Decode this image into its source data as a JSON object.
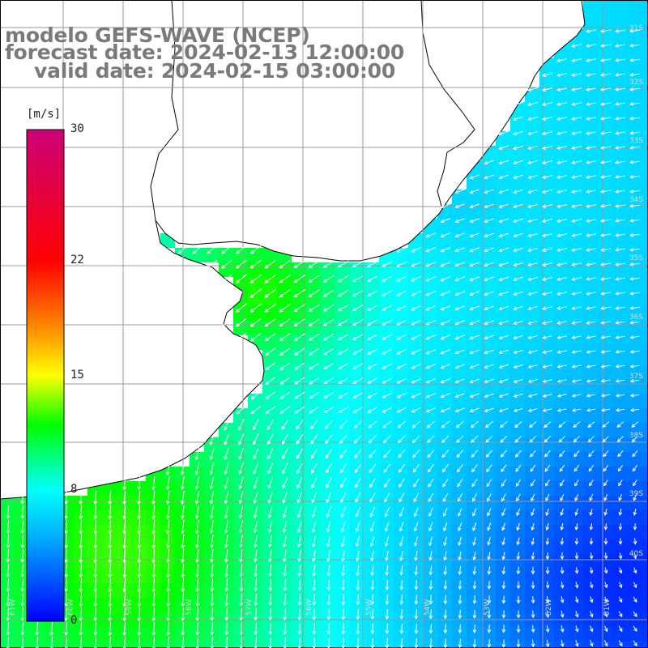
{
  "header": {
    "line1": "modelo GEFS-WAVE (NCEP)",
    "line2": "forecast date: 2024-02-13 12:00:00",
    "line3": "valid date: 2024-02-15 03:00:00"
  },
  "colorbar": {
    "unit": "[m/s]",
    "ticks": [
      {
        "value": 30,
        "label": "30"
      },
      {
        "value": 22,
        "label": "22"
      },
      {
        "value": 15,
        "label": "15"
      },
      {
        "value": 8,
        "label": "8"
      },
      {
        "value": 0,
        "label": "0"
      }
    ],
    "range": [
      0,
      30
    ],
    "colors": [
      "#0000ff",
      "#00aaff",
      "#00ffff",
      "#00ff00",
      "#ffff00",
      "#ff8800",
      "#ff0000",
      "#cc0077"
    ]
  },
  "map": {
    "field": "wind speed and direction (10 m)",
    "lon_labels": [
      "61W",
      "60W",
      "59W",
      "58W",
      "57W",
      "56W",
      "55W",
      "54W",
      "53W",
      "52W",
      "51W"
    ],
    "lat_labels": [
      "31S",
      "32S",
      "33S",
      "34S",
      "35S",
      "36S",
      "37S",
      "38S",
      "39S",
      "40S"
    ],
    "land_color": "#ffffff",
    "grid_color": "#999999",
    "arrow_color": "#ffffff",
    "wind_regimes": [
      {
        "region": "north-east shelf",
        "speed_ms": 7.5,
        "direction": "from northeast"
      },
      {
        "region": "Rio de la Plata estuary",
        "speed_ms": 11,
        "direction": "from northeast"
      },
      {
        "region": "central offshore",
        "speed_ms": 7,
        "direction": "from northeast"
      },
      {
        "region": "south-west coast",
        "speed_ms": 11,
        "direction": "from north"
      },
      {
        "region": "south-east corner",
        "speed_ms": 3,
        "direction": "from northwest"
      }
    ]
  }
}
